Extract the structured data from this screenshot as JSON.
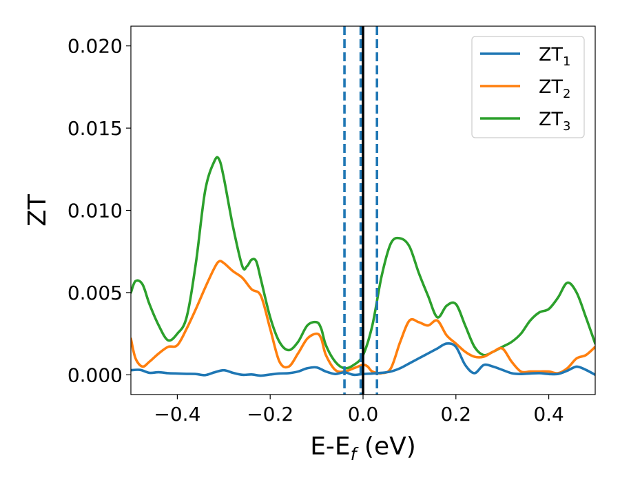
{
  "chart_data": {
    "type": "line",
    "xlabel": "E-E",
    "xlabel_sub": "f",
    "xlabel_unit": " (eV)",
    "ylabel": "ZT",
    "xlim": [
      -0.5,
      0.5
    ],
    "ylim": [
      -0.0012,
      0.0212
    ],
    "xticks": [
      -0.4,
      -0.2,
      0.0,
      0.2,
      0.4
    ],
    "xtick_labels": [
      "−0.4",
      "−0.2",
      "0.0",
      "0.2",
      "0.4"
    ],
    "yticks": [
      0.0,
      0.005,
      0.01,
      0.015,
      0.02
    ],
    "ytick_labels": [
      "0.000",
      "0.005",
      "0.010",
      "0.015",
      "0.020"
    ],
    "grid": false,
    "legend_position": "top-right",
    "series": [
      {
        "name": "ZT",
        "name_sub": "1",
        "color": "#1f77b4",
        "x": [
          -0.5,
          -0.48,
          -0.46,
          -0.44,
          -0.42,
          -0.4,
          -0.38,
          -0.36,
          -0.34,
          -0.32,
          -0.3,
          -0.28,
          -0.26,
          -0.24,
          -0.22,
          -0.2,
          -0.18,
          -0.16,
          -0.14,
          -0.12,
          -0.1,
          -0.08,
          -0.06,
          -0.04,
          -0.02,
          0.0,
          0.02,
          0.04,
          0.06,
          0.08,
          0.1,
          0.12,
          0.14,
          0.16,
          0.18,
          0.2,
          0.22,
          0.24,
          0.26,
          0.28,
          0.3,
          0.32,
          0.34,
          0.36,
          0.38,
          0.4,
          0.42,
          0.44,
          0.46,
          0.48,
          0.5
        ],
        "y": [
          0.00028,
          0.0003,
          0.00012,
          0.00016,
          0.0001,
          8e-05,
          6e-05,
          5e-05,
          -2e-05,
          0.00015,
          0.00028,
          0.00012,
          0.0,
          2e-05,
          -5e-05,
          2e-05,
          8e-05,
          0.0001,
          0.0002,
          0.0004,
          0.00045,
          0.0002,
          5e-05,
          0.00015,
          0.0,
          5e-05,
          8e-05,
          0.00012,
          0.0002,
          0.0004,
          0.0007,
          0.001,
          0.0013,
          0.0016,
          0.0019,
          0.0017,
          0.0006,
          0.0001,
          0.0006,
          0.0005,
          0.0003,
          0.0001,
          5e-05,
          8e-05,
          0.0001,
          5e-05,
          5e-05,
          0.00025,
          0.0005,
          0.0003,
          0.0
        ]
      },
      {
        "name": "ZT",
        "name_sub": "2",
        "color": "#ff7f0e",
        "x": [
          -0.5,
          -0.49,
          -0.475,
          -0.46,
          -0.44,
          -0.42,
          -0.4,
          -0.38,
          -0.36,
          -0.34,
          -0.32,
          -0.31,
          -0.3,
          -0.28,
          -0.26,
          -0.24,
          -0.22,
          -0.2,
          -0.18,
          -0.16,
          -0.14,
          -0.12,
          -0.1,
          -0.09,
          -0.08,
          -0.06,
          -0.04,
          -0.02,
          0.0,
          0.01,
          0.02,
          0.04,
          0.06,
          0.08,
          0.1,
          0.12,
          0.14,
          0.16,
          0.18,
          0.2,
          0.22,
          0.24,
          0.26,
          0.28,
          0.3,
          0.32,
          0.34,
          0.36,
          0.38,
          0.4,
          0.42,
          0.44,
          0.46,
          0.48,
          0.5
        ],
        "y": [
          0.0022,
          0.001,
          0.0005,
          0.0008,
          0.0013,
          0.0017,
          0.0018,
          0.0028,
          0.004,
          0.0053,
          0.0065,
          0.0069,
          0.0068,
          0.0063,
          0.0059,
          0.0052,
          0.0048,
          0.0028,
          0.0008,
          0.0005,
          0.0013,
          0.0022,
          0.0025,
          0.0022,
          0.0012,
          0.0003,
          0.0002,
          0.0004,
          0.0006,
          0.0005,
          0.0002,
          0.0001,
          0.0004,
          0.002,
          0.0033,
          0.0032,
          0.003,
          0.0033,
          0.0024,
          0.0019,
          0.0014,
          0.0011,
          0.0011,
          0.0014,
          0.0016,
          0.0008,
          0.0002,
          0.0002,
          0.0002,
          0.0002,
          0.0001,
          0.0004,
          0.001,
          0.0012,
          0.0017
        ]
      },
      {
        "name": "ZT",
        "name_sub": "3",
        "color": "#2ca02c",
        "x": [
          -0.5,
          -0.49,
          -0.475,
          -0.46,
          -0.44,
          -0.42,
          -0.4,
          -0.38,
          -0.36,
          -0.34,
          -0.32,
          -0.31,
          -0.3,
          -0.28,
          -0.26,
          -0.25,
          -0.24,
          -0.23,
          -0.22,
          -0.2,
          -0.18,
          -0.16,
          -0.14,
          -0.12,
          -0.1,
          -0.09,
          -0.08,
          -0.06,
          -0.04,
          -0.02,
          0.0,
          0.02,
          0.04,
          0.06,
          0.08,
          0.1,
          0.12,
          0.14,
          0.16,
          0.18,
          0.2,
          0.22,
          0.24,
          0.26,
          0.28,
          0.3,
          0.32,
          0.34,
          0.36,
          0.38,
          0.4,
          0.42,
          0.44,
          0.46,
          0.48,
          0.5
        ],
        "y": [
          0.005,
          0.0057,
          0.0055,
          0.0043,
          0.003,
          0.0021,
          0.0025,
          0.0035,
          0.0068,
          0.0112,
          0.013,
          0.0131,
          0.012,
          0.009,
          0.0066,
          0.0066,
          0.007,
          0.0069,
          0.0058,
          0.0035,
          0.002,
          0.0015,
          0.002,
          0.003,
          0.0032,
          0.0028,
          0.0018,
          0.0008,
          0.0004,
          0.0006,
          0.0012,
          0.003,
          0.006,
          0.008,
          0.0083,
          0.0078,
          0.0062,
          0.0048,
          0.0035,
          0.0042,
          0.0043,
          0.003,
          0.0017,
          0.0012,
          0.0014,
          0.0017,
          0.002,
          0.0025,
          0.0033,
          0.0038,
          0.004,
          0.0047,
          0.0056,
          0.005,
          0.0035,
          0.0019
        ]
      }
    ],
    "vlines": [
      {
        "x": -0.04,
        "style": "dashed",
        "color": "#1f77b4"
      },
      {
        "x": -0.005,
        "style": "dashed",
        "color": "#1f77b4"
      },
      {
        "x": 0.0,
        "style": "solid",
        "color": "#000000"
      },
      {
        "x": 0.03,
        "style": "dashed",
        "color": "#1f77b4"
      }
    ]
  }
}
